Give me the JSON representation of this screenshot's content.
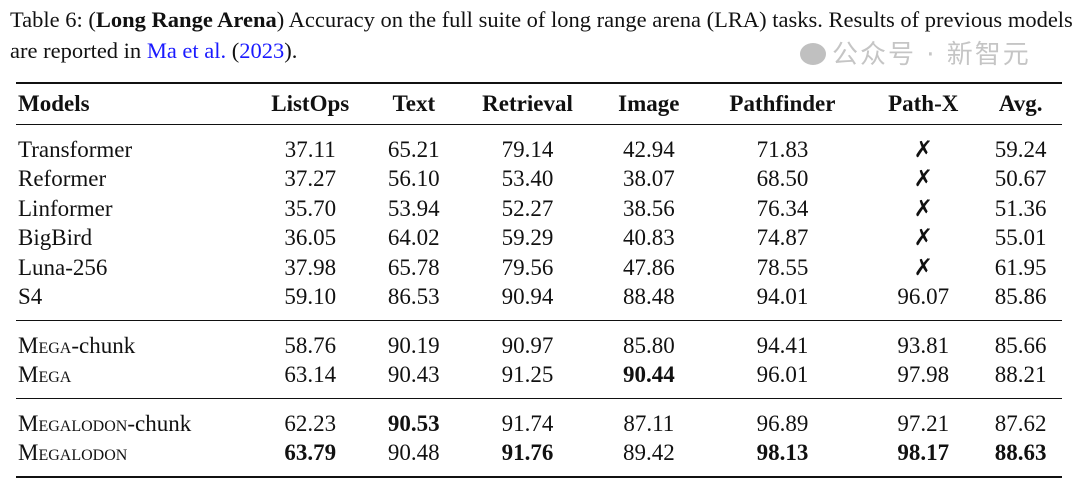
{
  "caption": {
    "label": "Table 6: (",
    "title": "Long Range Arena",
    "text": ") Accuracy on the full suite of long range arena (LRA) tasks. Results of previous models are reported in ",
    "cite_author": "Ma et al.",
    "cite_year_open": " (",
    "cite_year": "2023",
    "cite_end": ")."
  },
  "table": {
    "headers": [
      "Models",
      "ListOps",
      "Text",
      "Retrieval",
      "Image",
      "Pathfinder",
      "Path-X",
      "Avg."
    ],
    "groups": [
      [
        {
          "sc": "",
          "name": "Transformer",
          "values": [
            "37.11",
            "65.21",
            "79.14",
            "42.94",
            "71.83",
            "✗",
            "59.24"
          ],
          "bold": []
        },
        {
          "sc": "",
          "name": "Reformer",
          "values": [
            "37.27",
            "56.10",
            "53.40",
            "38.07",
            "68.50",
            "✗",
            "50.67"
          ],
          "bold": []
        },
        {
          "sc": "",
          "name": "Linformer",
          "values": [
            "35.70",
            "53.94",
            "52.27",
            "38.56",
            "76.34",
            "✗",
            "51.36"
          ],
          "bold": []
        },
        {
          "sc": "",
          "name": "BigBird",
          "values": [
            "36.05",
            "64.02",
            "59.29",
            "40.83",
            "74.87",
            "✗",
            "55.01"
          ],
          "bold": []
        },
        {
          "sc": "",
          "name": "Luna-256",
          "values": [
            "37.98",
            "65.78",
            "79.56",
            "47.86",
            "78.55",
            "✗",
            "61.95"
          ],
          "bold": []
        },
        {
          "sc": "",
          "name": "S4",
          "values": [
            "59.10",
            "86.53",
            "90.94",
            "88.48",
            "94.01",
            "96.07",
            "85.86"
          ],
          "bold": []
        }
      ],
      [
        {
          "sc": "Mega",
          "name": "-chunk",
          "values": [
            "58.76",
            "90.19",
            "90.97",
            "85.80",
            "94.41",
            "93.81",
            "85.66"
          ],
          "bold": []
        },
        {
          "sc": "Mega",
          "name": "",
          "values": [
            "63.14",
            "90.43",
            "91.25",
            "90.44",
            "96.01",
            "97.98",
            "88.21"
          ],
          "bold": [
            3
          ]
        }
      ],
      [
        {
          "sc": "Megalodon",
          "name": "-chunk",
          "values": [
            "62.23",
            "90.53",
            "91.74",
            "87.11",
            "96.89",
            "97.21",
            "87.62"
          ],
          "bold": [
            1
          ]
        },
        {
          "sc": "Megalodon",
          "name": "",
          "values": [
            "63.79",
            "90.48",
            "91.76",
            "89.42",
            "98.13",
            "98.17",
            "88.63"
          ],
          "bold": [
            0,
            2,
            4,
            5,
            6
          ]
        }
      ]
    ]
  },
  "watermark": "公众号 · 新智元",
  "colors": {
    "citation": "#1a1aff"
  }
}
